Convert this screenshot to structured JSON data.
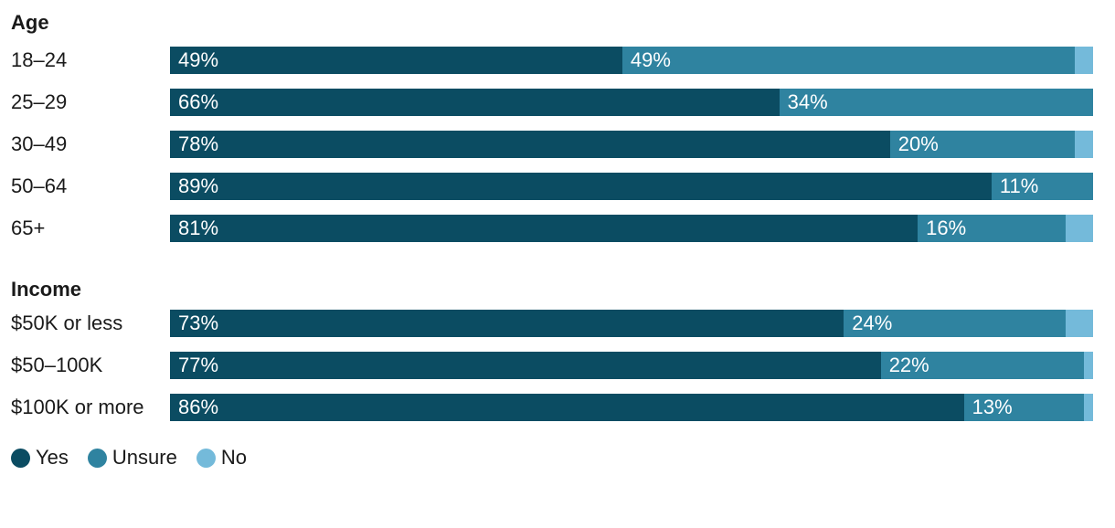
{
  "chart_data": {
    "type": "bar",
    "orientation": "horizontal",
    "stacked": true,
    "unit": "percent",
    "xlim": [
      0,
      100
    ],
    "grid": false,
    "series_names": [
      "Yes",
      "Unsure",
      "No"
    ],
    "colors": {
      "Yes": "#0b4c62",
      "Unsure": "#2f83a0",
      "No": "#74bada"
    },
    "sections": [
      {
        "title": "Age",
        "rows": [
          {
            "label": "18–24",
            "segments": [
              {
                "series": "Yes",
                "value": 49,
                "text": "49%"
              },
              {
                "series": "Unsure",
                "value": 49,
                "text": "49%"
              },
              {
                "series": "No",
                "value": 2,
                "text": ""
              }
            ]
          },
          {
            "label": "25–29",
            "segments": [
              {
                "series": "Yes",
                "value": 66,
                "text": "66%"
              },
              {
                "series": "Unsure",
                "value": 34,
                "text": "34%"
              },
              {
                "series": "No",
                "value": 0,
                "text": ""
              }
            ]
          },
          {
            "label": "30–49",
            "segments": [
              {
                "series": "Yes",
                "value": 78,
                "text": "78%"
              },
              {
                "series": "Unsure",
                "value": 20,
                "text": "20%"
              },
              {
                "series": "No",
                "value": 2,
                "text": ""
              }
            ]
          },
          {
            "label": "50–64",
            "segments": [
              {
                "series": "Yes",
                "value": 89,
                "text": "89%"
              },
              {
                "series": "Unsure",
                "value": 11,
                "text": "11%"
              },
              {
                "series": "No",
                "value": 0,
                "text": ""
              }
            ]
          },
          {
            "label": "65+",
            "segments": [
              {
                "series": "Yes",
                "value": 81,
                "text": "81%"
              },
              {
                "series": "Unsure",
                "value": 16,
                "text": "16%"
              },
              {
                "series": "No",
                "value": 3,
                "text": ""
              }
            ]
          }
        ]
      },
      {
        "title": "Income",
        "rows": [
          {
            "label": "$50K or less",
            "segments": [
              {
                "series": "Yes",
                "value": 73,
                "text": "73%"
              },
              {
                "series": "Unsure",
                "value": 24,
                "text": "24%"
              },
              {
                "series": "No",
                "value": 3,
                "text": ""
              }
            ]
          },
          {
            "label": "$50–100K",
            "segments": [
              {
                "series": "Yes",
                "value": 77,
                "text": "77%"
              },
              {
                "series": "Unsure",
                "value": 22,
                "text": "22%"
              },
              {
                "series": "No",
                "value": 1,
                "text": ""
              }
            ]
          },
          {
            "label": "$100K or more",
            "segments": [
              {
                "series": "Yes",
                "value": 86,
                "text": "86%"
              },
              {
                "series": "Unsure",
                "value": 13,
                "text": "13%"
              },
              {
                "series": "No",
                "value": 1,
                "text": ""
              }
            ]
          }
        ]
      }
    ],
    "legend": {
      "position": "bottom",
      "entries": [
        {
          "label": "Yes",
          "color": "#0b4c62"
        },
        {
          "label": "Unsure",
          "color": "#2f83a0"
        },
        {
          "label": "No",
          "color": "#74bada"
        }
      ]
    }
  }
}
